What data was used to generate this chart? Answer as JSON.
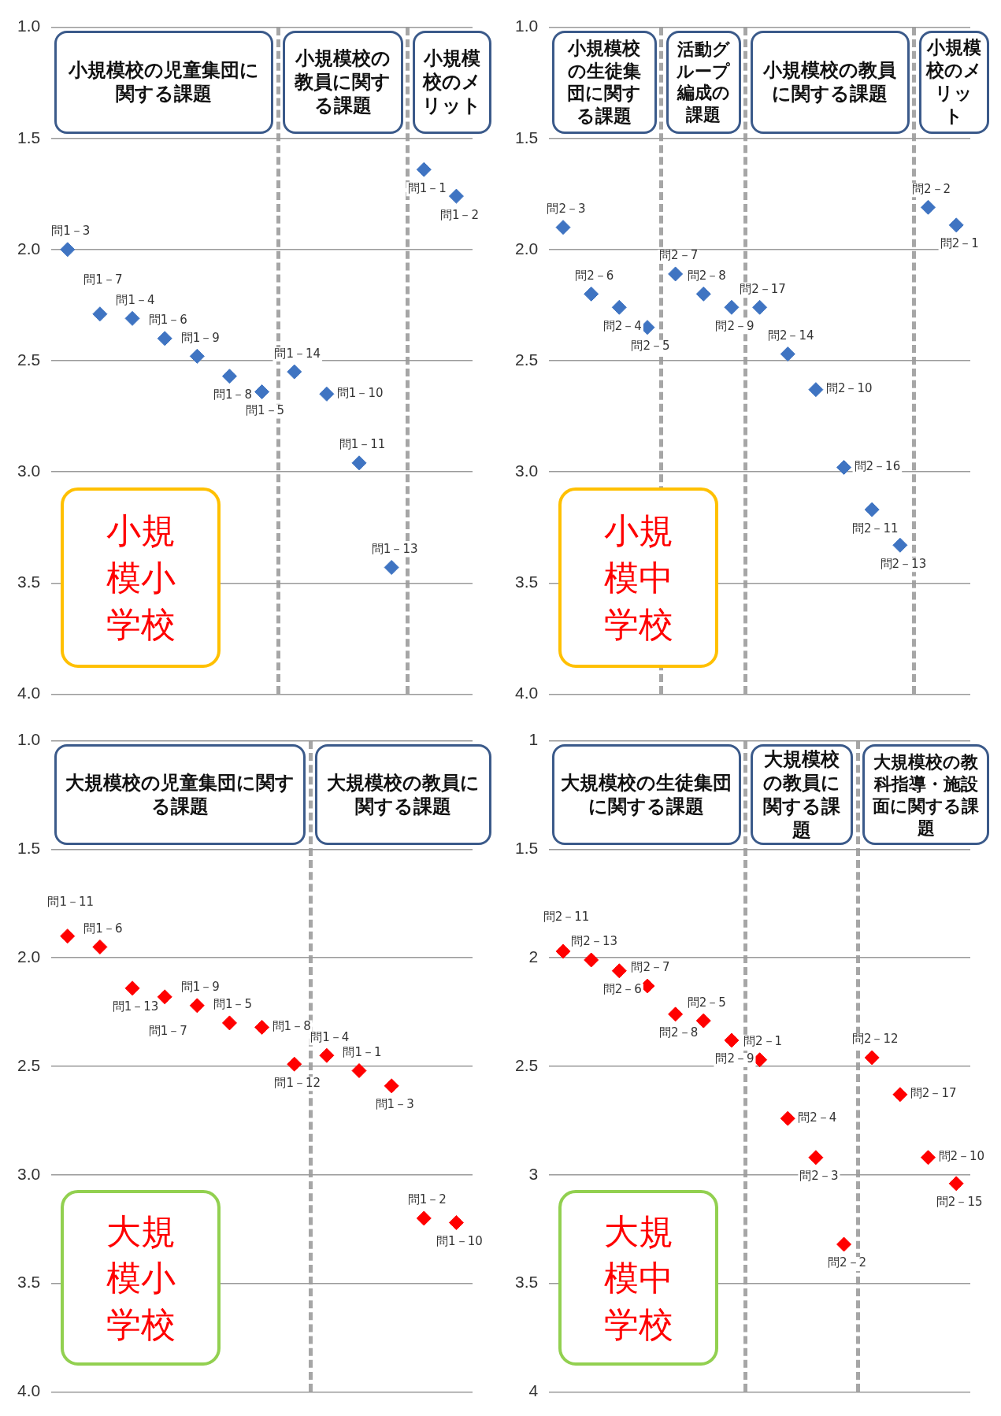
{
  "chart_data": [
    {
      "type": "scatter",
      "title": "小規模小学校",
      "marker": "diamond",
      "grid": "y",
      "tick_labels": "y",
      "ylim": [
        4.0,
        1.0
      ],
      "yticks": [
        {
          "value": 1,
          "label": "1.0"
        },
        1.5,
        {
          "value": 2,
          "label": "2.0"
        },
        2.5,
        {
          "value": 3,
          "label": "3.0"
        },
        3.5,
        {
          "value": 4,
          "label": "4.0"
        }
      ],
      "categories": [
        null,
        null,
        null,
        null,
        null,
        null,
        null,
        null,
        null,
        null,
        null,
        null,
        null
      ],
      "series": [
        {
          "color": "#3f74c2",
          "values": [
            2.0,
            2.29,
            2.31,
            2.4,
            2.48,
            2.57,
            2.64,
            2.55,
            2.65,
            2.96,
            3.43,
            1.64,
            1.76
          ],
          "value_labels": [
            "問1－3",
            "問1－7",
            "問1－4",
            "問1－6",
            "問1－9",
            "問1－8",
            "問1－5",
            "問1－14",
            "問1－10",
            "問1－11",
            "問1－13",
            "問1－1",
            "問1－2"
          ]
        }
      ],
      "annotations": [
        "小規模校の児童集団に関する課題",
        "小規模校の教員に関する課題",
        "小規模校のメリット"
      ]
    },
    {
      "type": "scatter",
      "title": "小規模中学校",
      "marker": "diamond",
      "grid": "y",
      "tick_labels": "y",
      "ylim": [
        4.0,
        1.0
      ],
      "yticks": [
        {
          "value": 1,
          "label": "1.0"
        },
        1.5,
        {
          "value": 2,
          "label": "2.0"
        },
        2.5,
        {
          "value": 3,
          "label": "3.0"
        },
        3.5,
        {
          "value": 4,
          "label": "4.0"
        }
      ],
      "categories": [
        null,
        null,
        null,
        null,
        null,
        null,
        null,
        null,
        null,
        null,
        null,
        null,
        null,
        null,
        null
      ],
      "series": [
        {
          "color": "#3f74c2",
          "values": [
            1.9,
            2.2,
            2.26,
            2.35,
            2.11,
            2.2,
            2.26,
            2.26,
            2.47,
            2.63,
            2.98,
            3.17,
            3.33,
            1.81,
            1.89
          ],
          "value_labels": [
            "問2－3",
            "問2－6",
            "問2－4",
            "問2－5",
            "問2－7",
            "問2－8",
            "問2－9",
            "問2－17",
            "問2－14",
            "問2－10",
            "問2－16",
            "問2－11",
            "問2－13",
            "問2－2",
            "問2－1"
          ]
        }
      ],
      "annotations": [
        "小規模校の生徒集団に関する課題",
        "活動グループ編成の課題",
        "小規模校の教員に関する課題",
        "小規模校のメリット"
      ]
    },
    {
      "type": "scatter",
      "title": "大規模小学校",
      "marker": "diamond",
      "grid": "y",
      "tick_labels": "y",
      "ylim": [
        4.0,
        1.0
      ],
      "yticks": [
        {
          "value": 1,
          "label": "1.0"
        },
        1.5,
        {
          "value": 2,
          "label": "2.0"
        },
        2.5,
        {
          "value": 3,
          "label": "3.0"
        },
        3.5,
        {
          "value": 4,
          "label": "4.0"
        }
      ],
      "categories": [
        null,
        null,
        null,
        null,
        null,
        null,
        null,
        null,
        null,
        null,
        null,
        null,
        null
      ],
      "series": [
        {
          "color": "#ff0000",
          "values": [
            1.9,
            1.95,
            2.14,
            2.18,
            2.22,
            2.3,
            2.32,
            2.49,
            2.45,
            2.52,
            2.59,
            3.2,
            3.22
          ],
          "value_labels": [
            "問1－11",
            "問1－6",
            "問1－13",
            "問1－7",
            "問1－9",
            "問1－5",
            "問1－8",
            "問1－12",
            "問1－4",
            "問1－1",
            "問1－3",
            "問1－2",
            "問1－10"
          ]
        }
      ],
      "annotations": [
        "大規模校の児童集団に関する課題",
        "大規模校の教員に関する課題"
      ]
    },
    {
      "type": "scatter",
      "title": "大規模中学校",
      "marker": "diamond",
      "grid": "y",
      "tick_labels": "y",
      "ylim": [
        4,
        1
      ],
      "yticks": [
        1,
        1.5,
        2,
        2.5,
        3,
        3.5,
        4
      ],
      "categories": [
        null,
        null,
        null,
        null,
        null,
        null,
        null,
        null,
        null,
        null,
        null,
        null,
        null,
        null,
        null
      ],
      "series": [
        {
          "color": "#ff0000",
          "values": [
            1.97,
            2.01,
            2.06,
            2.13,
            2.26,
            2.29,
            2.38,
            2.47,
            2.74,
            2.92,
            3.32,
            2.46,
            2.63,
            2.92,
            3.04
          ],
          "value_labels": [
            "問2－11",
            "問2－13",
            "問2－6",
            "問2－7",
            "問2－8",
            "問2－5",
            "問2－9",
            "問2－1",
            "問2－4",
            "問2－3",
            "問2－2",
            "問2－12",
            "問2－17",
            "問2－10",
            "問2－15"
          ]
        }
      ],
      "annotations": [
        "大規模校の生徒集団に関する課題",
        "大規模校の教員に関する課題",
        "大規模校の教科指導・施設面に関する課題"
      ]
    }
  ]
}
